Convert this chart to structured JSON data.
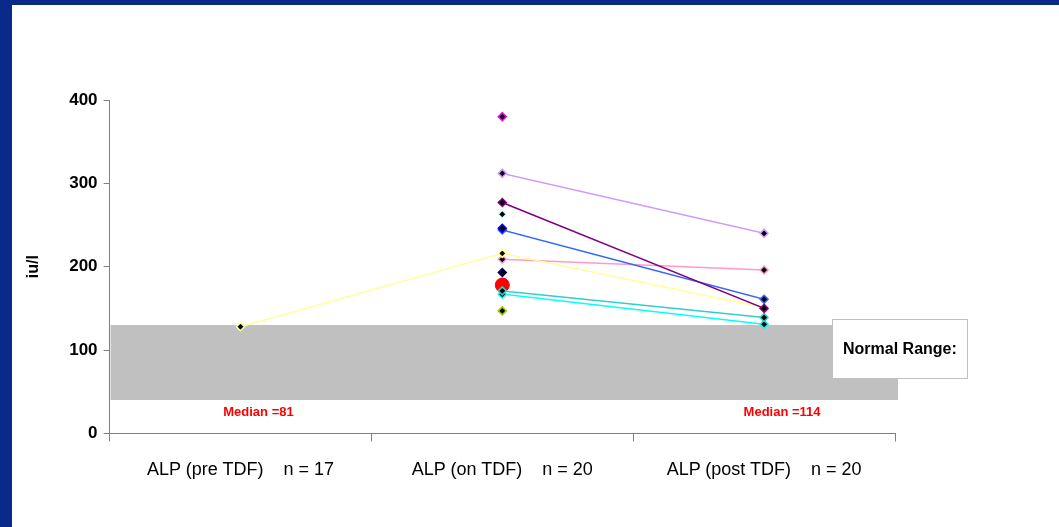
{
  "chart_data": {
    "type": "line",
    "categories": [
      "ALP (pre TDF)    n = 17",
      "ALP (on TDF)    n = 20",
      "ALP (post TDF)    n = 20"
    ],
    "ylabel": "iu/l",
    "ylim": [
      0,
      400
    ],
    "yticks": [
      0,
      100,
      200,
      300,
      400
    ],
    "grid": false,
    "legend": false,
    "marker": "diamond",
    "series": [
      {
        "color": "#ff00ff",
        "values": [
          null,
          380,
          null
        ]
      },
      {
        "color": "#cc99ff",
        "values": [
          null,
          312,
          240
        ]
      },
      {
        "color": "#800080",
        "values": [
          null,
          277,
          150
        ]
      },
      {
        "color": "#ccffff",
        "values": [
          null,
          263,
          null
        ]
      },
      {
        "color": "#0000ff",
        "values": [
          null,
          246,
          null
        ]
      },
      {
        "color": "#3366ff",
        "values": [
          null,
          244,
          161
        ]
      },
      {
        "color": "#ffff99",
        "values": [
          128,
          216,
          151
        ]
      },
      {
        "color": "#ff99cc",
        "values": [
          null,
          209,
          196
        ]
      },
      {
        "color": "#000080",
        "values": [
          null,
          193,
          null
        ]
      },
      {
        "color": "#33cccc",
        "values": [
          null,
          171,
          139
        ]
      },
      {
        "color": "#00ffff",
        "values": [
          null,
          167,
          131
        ]
      },
      {
        "color": "#99cc00",
        "values": [
          null,
          147,
          null
        ]
      },
      {
        "color": "#ff0000",
        "values": [
          null,
          178,
          null
        ],
        "marker": "circle"
      }
    ],
    "bands": [
      {
        "axis": "y",
        "from": 40,
        "to": 130,
        "label": "Normal Range:",
        "color": "#c0c0c0"
      }
    ],
    "annotations": [
      "Median =81",
      "Median =114"
    ]
  }
}
